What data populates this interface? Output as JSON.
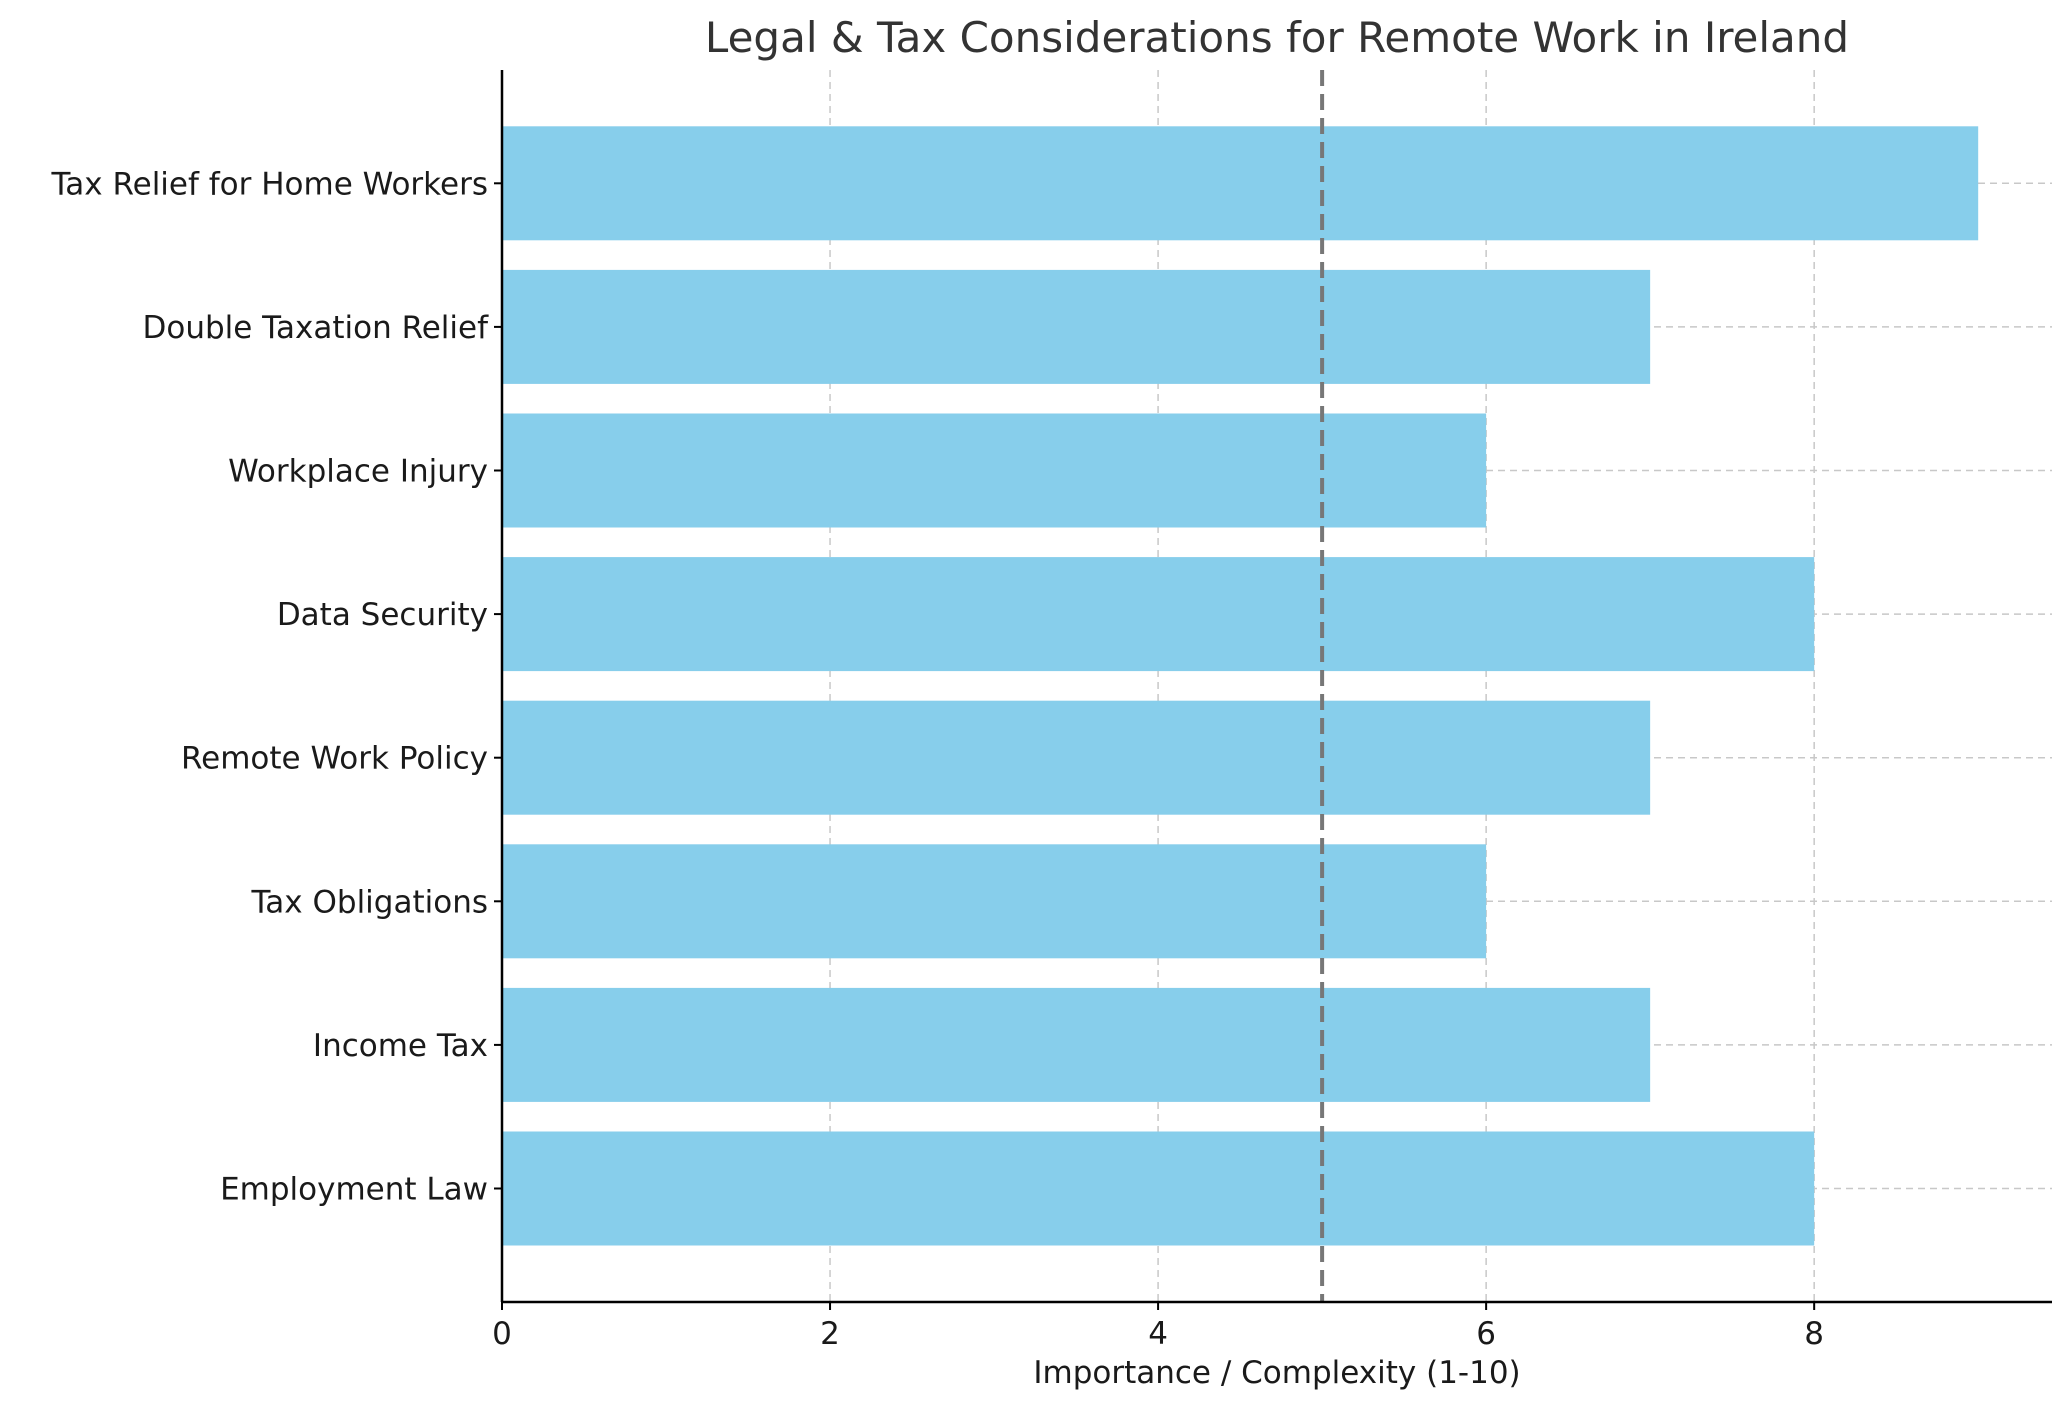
{
  "chart_data": {
    "type": "bar",
    "orientation": "horizontal",
    "title": "Legal & Tax Considerations for Remote Work in Ireland",
    "xlabel": "Importance / Complexity (1-10)",
    "ylabel": "",
    "categories": [
      "Employment Law",
      "Income Tax",
      "Tax Obligations",
      "Remote Work Policy",
      "Data Security",
      "Workplace Injury",
      "Double Taxation Relief",
      "Tax Relief for Home Workers"
    ],
    "values": [
      8,
      7,
      6,
      7,
      8,
      6,
      7,
      9
    ],
    "xlim": [
      0,
      9.45
    ],
    "xticks": [
      0,
      2,
      4,
      6,
      8
    ],
    "reference_line": {
      "x": 5,
      "style": "dashed"
    },
    "grid": true,
    "colors": {
      "bar": "#87CEEB",
      "reference_line": "#777777",
      "grid": "#c8c8c8",
      "axis": "#000000",
      "title": "#333333"
    }
  }
}
